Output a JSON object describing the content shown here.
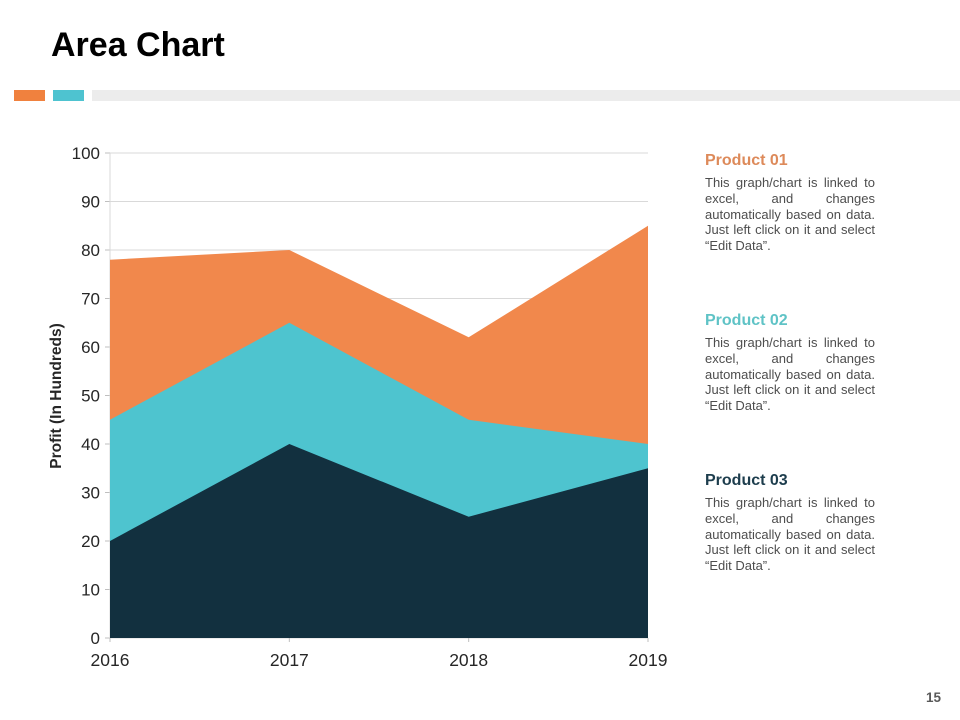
{
  "slide": {
    "title": "Area Chart",
    "page_number": "15",
    "accent_bars": [
      "#F0813E",
      "#4EC3D0",
      "#ECECEC"
    ]
  },
  "products": [
    {
      "title": "Product 01",
      "color": "#DD8A5A",
      "body": "This graph/chart is linked to excel, and changes automatically based on data. Just left click on it and select “Edit Data”."
    },
    {
      "title": "Product 02",
      "color": "#5FC3C6",
      "body": "This graph/chart is linked to excel, and changes automatically based on data. Just left click on it and select “Edit Data”."
    },
    {
      "title": "Product 03",
      "color": "#1D3D4D",
      "body": "This graph/chart is linked to excel, and changes automatically based on data. Just left click on it and select “Edit Data”."
    }
  ],
  "chart_data": {
    "type": "area",
    "stacked": true,
    "x": [
      "2016",
      "2017",
      "2018",
      "2019"
    ],
    "series": [
      {
        "name": "Product 03",
        "values": [
          20,
          40,
          25,
          35
        ],
        "cumulative_top": [
          20,
          40,
          25,
          35
        ],
        "color": "#12303F"
      },
      {
        "name": "Product 02",
        "values": [
          25,
          25,
          20,
          5
        ],
        "cumulative_top": [
          45,
          65,
          45,
          40
        ],
        "color": "#4EC4CF"
      },
      {
        "name": "Product 01",
        "values": [
          33,
          15,
          17,
          45
        ],
        "cumulative_top": [
          78,
          80,
          62,
          85
        ],
        "color": "#F1884C"
      }
    ],
    "title": "",
    "xlabel": "",
    "ylabel": "Profit (In Hundreds)",
    "ylim": [
      0,
      100
    ],
    "ytick_step": 10,
    "grid": true,
    "legend": "none",
    "grid_color": "#D9D9D9",
    "tick_color": "#BFBFBF",
    "tick_label_color": "#262626"
  }
}
